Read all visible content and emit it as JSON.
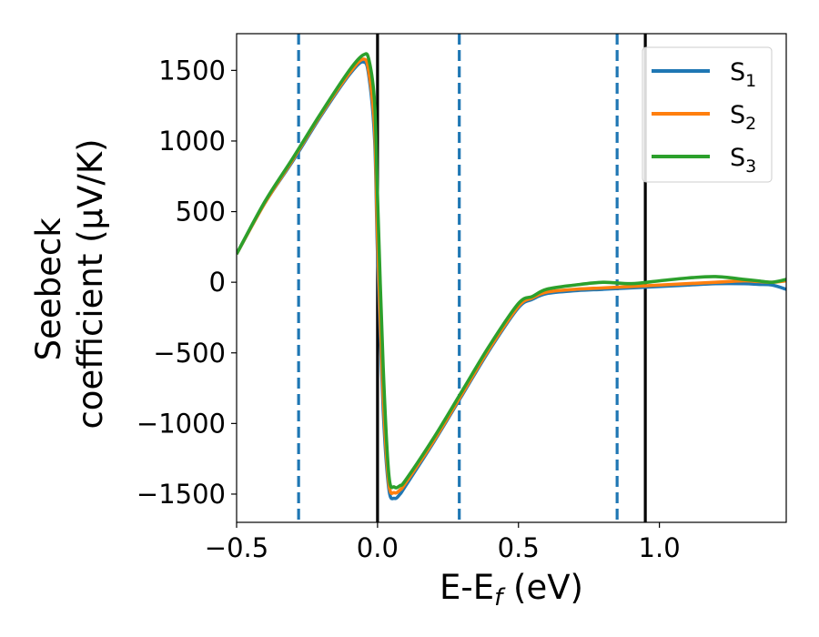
{
  "chart_data": {
    "type": "line",
    "xlabel": {
      "main": "E-E",
      "sub": "f",
      "tail": " (eV)"
    },
    "ylabel": {
      "line1": "Seebeck",
      "line2": "coefficient  (μV/K)"
    },
    "xlim": [
      -0.5,
      1.45
    ],
    "ylim": [
      -1700,
      1760
    ],
    "xticks": [
      {
        "value": -0.5,
        "label": "−0.5"
      },
      {
        "value": 0.0,
        "label": "0.0"
      },
      {
        "value": 0.5,
        "label": "0.5"
      },
      {
        "value": 1.0,
        "label": "1.0"
      }
    ],
    "yticks": [
      {
        "value": 1500,
        "label": "1500"
      },
      {
        "value": 1000,
        "label": "1000"
      },
      {
        "value": 500,
        "label": "500"
      },
      {
        "value": 0,
        "label": "0"
      },
      {
        "value": -500,
        "label": "−500"
      },
      {
        "value": -1000,
        "label": "−1000"
      },
      {
        "value": -1500,
        "label": "−1500"
      }
    ],
    "grid": false,
    "legend_position": "top-right",
    "vlines": [
      {
        "x": -0.28,
        "style": "dashed",
        "color": "#1f77b4"
      },
      {
        "x": 0.0,
        "style": "solid",
        "color": "#000000"
      },
      {
        "x": 0.29,
        "style": "dashed",
        "color": "#1f77b4"
      },
      {
        "x": 0.85,
        "style": "dashed",
        "color": "#1f77b4"
      },
      {
        "x": 0.95,
        "style": "solid",
        "color": "#000000"
      }
    ],
    "series": [
      {
        "name": "S",
        "sub": "1",
        "color": "#1f77b4",
        "x": [
          -0.5,
          -0.4,
          -0.3,
          -0.2,
          -0.1,
          -0.05,
          -0.03,
          -0.01,
          0.0,
          0.02,
          0.04,
          0.06,
          0.08,
          0.1,
          0.2,
          0.3,
          0.4,
          0.5,
          0.55,
          0.6,
          0.7,
          0.8,
          0.9,
          1.0,
          1.1,
          1.2,
          1.3,
          1.35,
          1.4,
          1.45
        ],
        "y": [
          200,
          560,
          860,
          1180,
          1470,
          1560,
          1450,
          1000,
          200,
          -900,
          -1460,
          -1530,
          -1500,
          -1440,
          -1130,
          -800,
          -470,
          -180,
          -120,
          -80,
          -60,
          -50,
          -40,
          -30,
          -20,
          -10,
          -10,
          -15,
          -20,
          -50
        ]
      },
      {
        "name": "S",
        "sub": "2",
        "color": "#ff7f0e",
        "x": [
          -0.5,
          -0.4,
          -0.3,
          -0.2,
          -0.1,
          -0.05,
          -0.03,
          -0.01,
          0.0,
          0.02,
          0.04,
          0.06,
          0.08,
          0.1,
          0.2,
          0.3,
          0.4,
          0.5,
          0.55,
          0.6,
          0.7,
          0.8,
          0.9,
          1.0,
          1.1,
          1.2,
          1.3,
          1.35,
          1.4,
          1.45
        ],
        "y": [
          200,
          560,
          870,
          1190,
          1480,
          1580,
          1480,
          1080,
          320,
          -800,
          -1420,
          -1490,
          -1470,
          -1420,
          -1120,
          -790,
          -460,
          -170,
          -110,
          -70,
          -50,
          -40,
          -30,
          -20,
          -10,
          0,
          10,
          5,
          0,
          10
        ]
      },
      {
        "name": "S",
        "sub": "3",
        "color": "#2ca02c",
        "x": [
          -0.5,
          -0.4,
          -0.3,
          -0.2,
          -0.1,
          -0.05,
          -0.03,
          -0.01,
          0.0,
          0.02,
          0.04,
          0.06,
          0.08,
          0.1,
          0.2,
          0.3,
          0.4,
          0.5,
          0.55,
          0.6,
          0.7,
          0.8,
          0.9,
          1.0,
          1.1,
          1.2,
          1.3,
          1.35,
          1.4,
          1.45
        ],
        "y": [
          200,
          570,
          880,
          1200,
          1500,
          1610,
          1570,
          1260,
          600,
          -600,
          -1360,
          -1450,
          -1440,
          -1400,
          -1100,
          -770,
          -440,
          -150,
          -100,
          -50,
          -20,
          0,
          -10,
          10,
          30,
          40,
          20,
          10,
          0,
          20
        ]
      }
    ]
  }
}
